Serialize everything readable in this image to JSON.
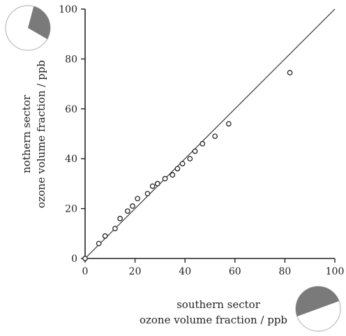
{
  "chart_data": {
    "type": "scatter",
    "title": "",
    "xlabel": [
      "southern sector",
      "ozone volume fraction / ppb"
    ],
    "ylabel": [
      "nothern sector",
      "ozone volume fraction / ppb"
    ],
    "xlim": [
      0,
      100
    ],
    "ylim": [
      0,
      100
    ],
    "xticks": [
      "0",
      "20",
      "40",
      "60",
      "80",
      "100"
    ],
    "yticks": [
      "0",
      "20",
      "40",
      "60",
      "80",
      "100"
    ],
    "grid": false,
    "reference_line": "y = x",
    "points": [
      {
        "x": 0,
        "y": 0
      },
      {
        "x": 5.5,
        "y": 6
      },
      {
        "x": 8,
        "y": 9
      },
      {
        "x": 12,
        "y": 12
      },
      {
        "x": 14,
        "y": 16
      },
      {
        "x": 17,
        "y": 19
      },
      {
        "x": 19,
        "y": 21
      },
      {
        "x": 21,
        "y": 24
      },
      {
        "x": 25,
        "y": 26
      },
      {
        "x": 27,
        "y": 29
      },
      {
        "x": 29,
        "y": 30
      },
      {
        "x": 32,
        "y": 32
      },
      {
        "x": 35,
        "y": 33.5
      },
      {
        "x": 37,
        "y": 36
      },
      {
        "x": 39,
        "y": 38
      },
      {
        "x": 42,
        "y": 40
      },
      {
        "x": 44,
        "y": 43
      },
      {
        "x": 47,
        "y": 46
      },
      {
        "x": 52,
        "y": 49
      },
      {
        "x": 57.5,
        "y": 54
      },
      {
        "x": 82,
        "y": 74.5
      }
    ]
  },
  "sector_icons": {
    "northern": {
      "fill": "#7a7a7a",
      "start_deg": -75,
      "end_deg": 30
    },
    "southern": {
      "fill": "#7a7a7a",
      "start_deg": 160,
      "end_deg": 340
    }
  }
}
